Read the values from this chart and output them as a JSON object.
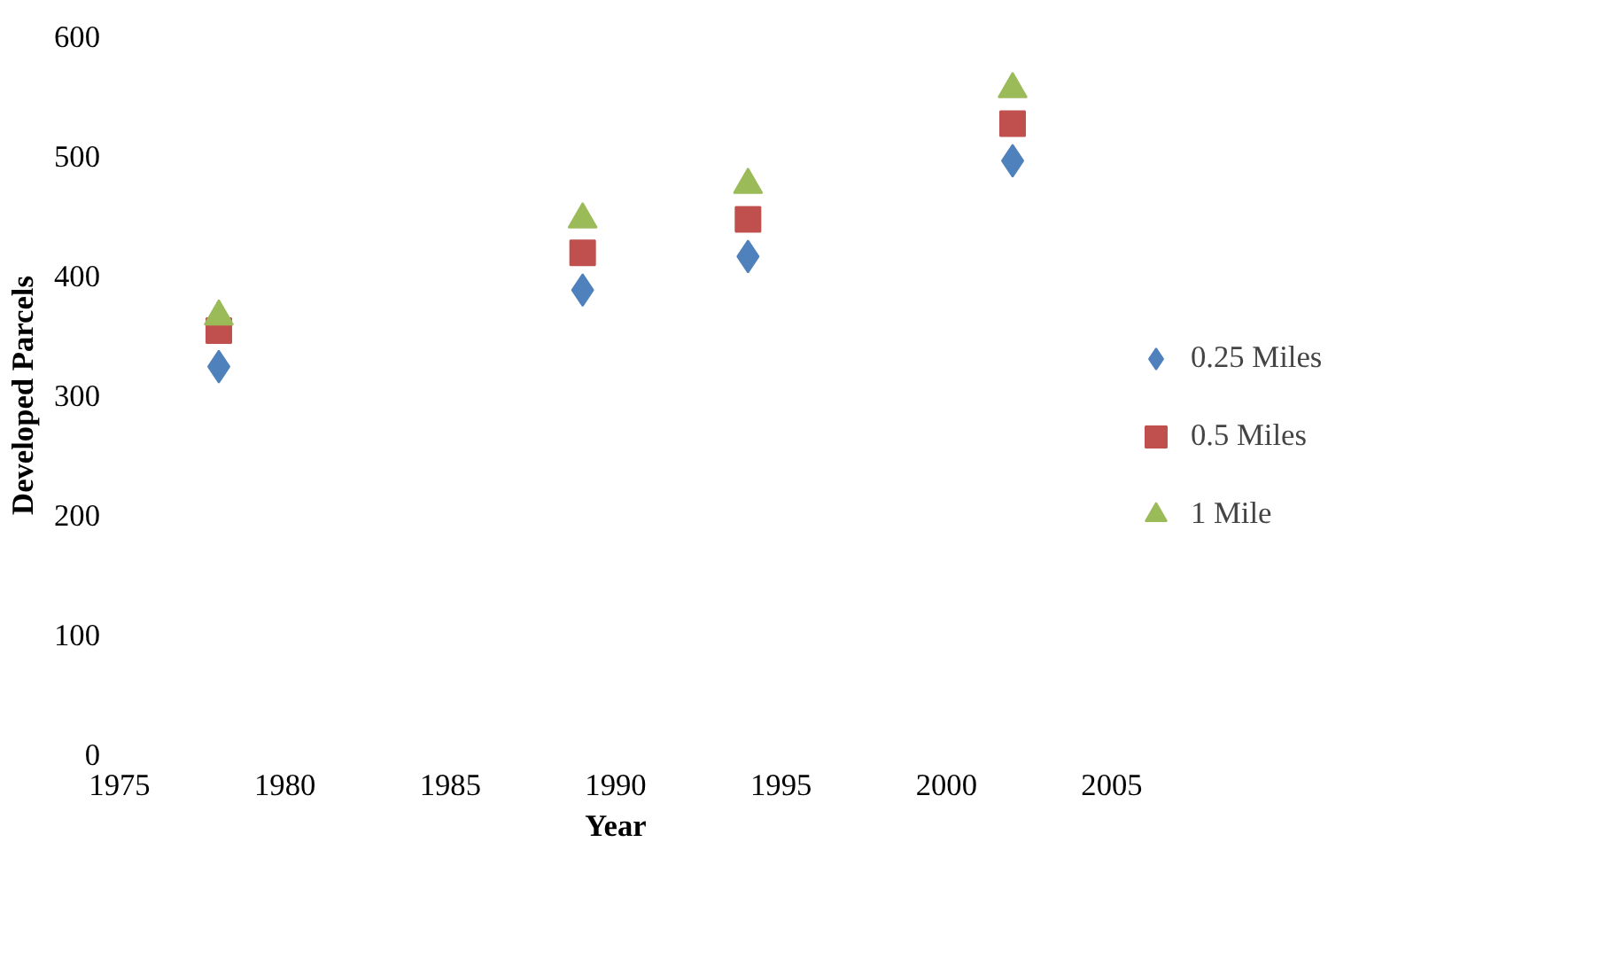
{
  "chart_data": {
    "type": "scatter",
    "xlabel": "Year",
    "ylabel": "Developed Parcels",
    "x": [
      1978,
      1989,
      1994,
      2002
    ],
    "series": [
      {
        "name": "0.25 Miles",
        "color": "#4f81bd",
        "marker": "diamond",
        "values": [
          324,
          388,
          416,
          496
        ]
      },
      {
        "name": "0.5 Miles",
        "color": "#c0504d",
        "marker": "square",
        "values": [
          354,
          419,
          447,
          527
        ]
      },
      {
        "name": "1 Mile",
        "color": "#9bbb59",
        "marker": "triangle",
        "values": [
          366,
          447,
          476,
          556
        ]
      }
    ],
    "xlim": [
      1975,
      2005
    ],
    "xticks": [
      1975,
      1980,
      1985,
      1990,
      1995,
      2000,
      2005
    ],
    "ylim": [
      0,
      600
    ],
    "yticks": [
      0,
      100,
      200,
      300,
      400,
      500,
      600
    ],
    "grid": false,
    "legend": "right"
  }
}
